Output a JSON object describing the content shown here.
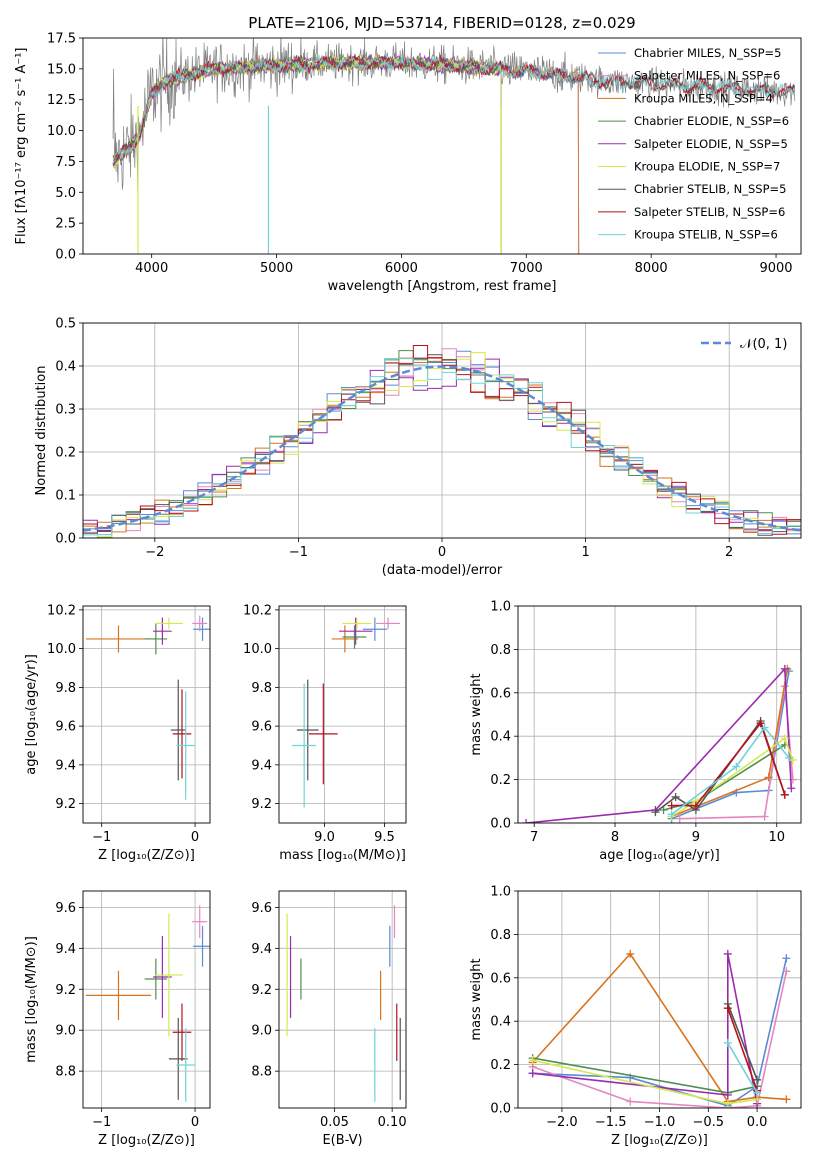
{
  "colors": {
    "chabrier_miles": "#5b8bd6",
    "salpeter_miles": "#e487bf",
    "kroupa_miles": "#d9731c",
    "chabrier_elodie": "#4f8f4f",
    "salpeter_elodie": "#9a2bb0",
    "kroupa_elodie": "#d6e84c",
    "chabrier_stelib": "#555555",
    "salpeter_stelib": "#b5121b",
    "kroupa_stelib": "#6fd3d8",
    "data": "#808080",
    "gauss": "#5b8bd6",
    "grid": "#b0b0b0"
  },
  "chart_data": [
    {
      "id": "spectrum",
      "type": "line",
      "title": "PLATE=2106, MJD=53714, FIBERID=0128, z=0.029",
      "xlabel": "wavelength [Angstrom, rest frame]",
      "ylabel": "Flux [fλ10⁻¹⁷ erg cm⁻² s⁻¹ A⁻¹]",
      "xlim": [
        3450,
        9200
      ],
      "ylim": [
        0,
        17.5
      ],
      "xticks": [
        "4000",
        "5000",
        "6000",
        "7000",
        "8000",
        "9000"
      ],
      "yticks": [
        "0.0",
        "2.5",
        "5.0",
        "7.5",
        "10.0",
        "12.5",
        "15.0",
        "17.5"
      ],
      "grid": false,
      "legend_position": "top-right",
      "legend": [
        "Chabrier MILES, N_SSP=5",
        "Salpeter MILES, N_SSP=6",
        "Kroupa MILES, N_SSP=4",
        "Chabrier ELODIE, N_SSP=6",
        "Salpeter ELODIE, N_SSP=5",
        "Kroupa ELODIE, N_SSP=7",
        "Chabrier STELIB, N_SSP=5",
        "Salpeter STELIB, N_SSP=6",
        "Kroupa STELIB, N_SSP=6"
      ],
      "continuum": {
        "x": [
          3700,
          3800,
          3900,
          4000,
          4100,
          4300,
          4500,
          5000,
          5500,
          6000,
          6500,
          7000,
          7400,
          7600,
          8000,
          8500,
          9000
        ],
        "y": [
          7.5,
          8.5,
          9.5,
          13.0,
          14.0,
          14.5,
          15.0,
          15.3,
          15.5,
          15.5,
          15.2,
          14.8,
          14.4,
          14.0,
          13.8,
          13.5,
          13.2
        ]
      }
    },
    {
      "id": "residuals",
      "type": "histogram",
      "xlabel": "(data-model)/error",
      "ylabel": "Normed distribution",
      "xlim": [
        -2.5,
        2.5
      ],
      "ylim": [
        0,
        0.5
      ],
      "xticks": [
        "−2",
        "−1",
        "0",
        "1",
        "2"
      ],
      "yticks": [
        "0.0",
        "0.1",
        "0.2",
        "0.3",
        "0.4",
        "0.5"
      ],
      "grid": true,
      "legend_position": "top-right",
      "legend": [
        "𝒩(0, 1)"
      ],
      "bin_width": 0.1
    },
    {
      "id": "age_vs_Z",
      "type": "errorbar",
      "xlabel": "Z [log₁₀(Z/Z⊙)]",
      "ylabel": "age  [log₁₀(age/yr)]",
      "xlim": [
        -1.2,
        0.16
      ],
      "ylim": [
        9.1,
        10.22
      ],
      "xticks": [
        "−1",
        "0"
      ],
      "yticks": [
        "9.2",
        "9.4",
        "9.6",
        "9.8",
        "10.0",
        "10.2"
      ],
      "grid": true,
      "points": [
        {
          "model": "chabrier_miles",
          "x": 0.08,
          "y": 10.1,
          "xerr": 0.1,
          "yerr": 0.06
        },
        {
          "model": "salpeter_miles",
          "x": 0.05,
          "y": 10.13,
          "xerr": 0.08,
          "yerr": 0.04
        },
        {
          "model": "kroupa_miles",
          "x": -0.82,
          "y": 10.05,
          "xerr": 0.35,
          "yerr": 0.07
        },
        {
          "model": "chabrier_elodie",
          "x": -0.42,
          "y": 10.05,
          "xerr": 0.12,
          "yerr": 0.08
        },
        {
          "model": "salpeter_elodie",
          "x": -0.35,
          "y": 10.09,
          "xerr": 0.1,
          "yerr": 0.07
        },
        {
          "model": "kroupa_elodie",
          "x": -0.28,
          "y": 10.13,
          "xerr": 0.15,
          "yerr": 0.03
        },
        {
          "model": "chabrier_stelib",
          "x": -0.18,
          "y": 9.58,
          "xerr": 0.08,
          "yerr": 0.26
        },
        {
          "model": "salpeter_stelib",
          "x": -0.14,
          "y": 9.56,
          "xerr": 0.1,
          "yerr": 0.23
        },
        {
          "model": "kroupa_stelib",
          "x": -0.1,
          "y": 9.5,
          "xerr": 0.1,
          "yerr": 0.28
        }
      ]
    },
    {
      "id": "age_vs_mass",
      "type": "errorbar",
      "xlabel": "mass [log₁₀(M/M⊙)]",
      "ylabel": "",
      "xlim": [
        8.62,
        9.68
      ],
      "ylim": [
        9.1,
        10.22
      ],
      "xticks": [
        "9.0",
        "9.5"
      ],
      "yticks": [
        "9.2",
        "9.4",
        "9.6",
        "9.8",
        "10.0",
        "10.2"
      ],
      "grid": true,
      "points": [
        {
          "model": "chabrier_miles",
          "x": 9.42,
          "y": 10.1,
          "xerr": 0.1,
          "yerr": 0.06
        },
        {
          "model": "salpeter_miles",
          "x": 9.53,
          "y": 10.13,
          "xerr": 0.1,
          "yerr": 0.03
        },
        {
          "model": "kroupa_miles",
          "x": 9.17,
          "y": 10.05,
          "xerr": 0.11,
          "yerr": 0.07
        },
        {
          "model": "chabrier_elodie",
          "x": 9.25,
          "y": 10.06,
          "xerr": 0.1,
          "yerr": 0.06
        },
        {
          "model": "salpeter_elodie",
          "x": 9.26,
          "y": 10.09,
          "xerr": 0.14,
          "yerr": 0.07
        },
        {
          "model": "kroupa_elodie",
          "x": 9.27,
          "y": 10.13,
          "xerr": 0.12,
          "yerr": 0.03
        },
        {
          "model": "chabrier_stelib",
          "x": 8.86,
          "y": 9.58,
          "xerr": 0.09,
          "yerr": 0.26
        },
        {
          "model": "salpeter_stelib",
          "x": 8.99,
          "y": 9.56,
          "xerr": 0.12,
          "yerr": 0.26
        },
        {
          "model": "kroupa_stelib",
          "x": 8.83,
          "y": 9.5,
          "xerr": 0.1,
          "yerr": 0.32
        }
      ]
    },
    {
      "id": "weight_vs_age",
      "type": "line",
      "xlabel": "age  [log₁₀(age/yr)]",
      "ylabel": "mass weight",
      "xlim": [
        6.8,
        10.3
      ],
      "ylim": [
        0,
        1
      ],
      "xticks": [
        "7",
        "8",
        "9",
        "10"
      ],
      "yticks": [
        "0.0",
        "0.2",
        "0.4",
        "0.6",
        "0.8",
        "1.0"
      ],
      "grid": true,
      "series": [
        {
          "model": "chabrier_miles",
          "x": [
            8.7,
            9.5,
            9.9,
            10.15
          ],
          "y": [
            0.02,
            0.14,
            0.15,
            0.7
          ]
        },
        {
          "model": "salpeter_miles",
          "x": [
            8.8,
            9.85,
            10.1,
            10.2
          ],
          "y": [
            0.02,
            0.03,
            0.63,
            0.2
          ]
        },
        {
          "model": "kroupa_miles",
          "x": [
            8.7,
            9.9,
            10.13
          ],
          "y": [
            0.03,
            0.21,
            0.71
          ]
        },
        {
          "model": "chabrier_elodie",
          "x": [
            8.6,
            9.0,
            10.1
          ],
          "y": [
            0.06,
            0.1,
            0.36
          ]
        },
        {
          "model": "salpeter_elodie",
          "x": [
            6.9,
            8.5,
            10.1,
            10.18
          ],
          "y": [
            0.0,
            0.06,
            0.71,
            0.16
          ]
        },
        {
          "model": "kroupa_elodie",
          "x": [
            8.7,
            9.0,
            10.1,
            10.2
          ],
          "y": [
            0.03,
            0.1,
            0.39,
            0.29
          ]
        },
        {
          "model": "chabrier_stelib",
          "x": [
            8.5,
            8.75,
            9.0,
            9.8,
            10.1
          ],
          "y": [
            0.05,
            0.12,
            0.06,
            0.47,
            0.13
          ]
        },
        {
          "model": "salpeter_stelib",
          "x": [
            8.7,
            9.0,
            9.8,
            10.1
          ],
          "y": [
            0.08,
            0.08,
            0.46,
            0.13
          ]
        },
        {
          "model": "kroupa_stelib",
          "x": [
            8.7,
            9.5,
            9.85,
            10.15
          ],
          "y": [
            0.04,
            0.26,
            0.44,
            0.3
          ]
        }
      ]
    },
    {
      "id": "mass_vs_Z",
      "type": "errorbar",
      "xlabel": "Z [log₁₀(Z/Z⊙)]",
      "ylabel": "mass [log₁₀(M/M⊙)]",
      "xlim": [
        -1.2,
        0.16
      ],
      "ylim": [
        8.62,
        9.68
      ],
      "xticks": [
        "−1",
        "0"
      ],
      "yticks": [
        "8.8",
        "9.0",
        "9.2",
        "9.4",
        "9.6"
      ],
      "grid": true,
      "points": [
        {
          "model": "chabrier_miles",
          "x": 0.08,
          "y": 9.41,
          "xerr": 0.1,
          "yerr": 0.1
        },
        {
          "model": "salpeter_miles",
          "x": 0.05,
          "y": 9.53,
          "xerr": 0.08,
          "yerr": 0.08
        },
        {
          "model": "kroupa_miles",
          "x": -0.82,
          "y": 9.17,
          "xerr": 0.35,
          "yerr": 0.12
        },
        {
          "model": "chabrier_elodie",
          "x": -0.42,
          "y": 9.25,
          "xerr": 0.12,
          "yerr": 0.1
        },
        {
          "model": "salpeter_elodie",
          "x": -0.35,
          "y": 9.26,
          "xerr": 0.1,
          "yerr": 0.2
        },
        {
          "model": "kroupa_elodie",
          "x": -0.28,
          "y": 9.27,
          "xerr": 0.15,
          "yerr": 0.3
        },
        {
          "model": "chabrier_stelib",
          "x": -0.18,
          "y": 8.86,
          "xerr": 0.1,
          "yerr": 0.2
        },
        {
          "model": "salpeter_stelib",
          "x": -0.14,
          "y": 8.99,
          "xerr": 0.1,
          "yerr": 0.14
        },
        {
          "model": "kroupa_stelib",
          "x": -0.1,
          "y": 8.83,
          "xerr": 0.1,
          "yerr": 0.18
        }
      ]
    },
    {
      "id": "mass_vs_ebv",
      "type": "errorbar",
      "xlabel": "E(B-V)",
      "ylabel": "",
      "xlim": [
        0.002,
        0.112
      ],
      "ylim": [
        8.62,
        9.68
      ],
      "xticks": [
        "0.05",
        "0.10"
      ],
      "yticks": [
        "8.8",
        "9.0",
        "9.2",
        "9.4",
        "9.6"
      ],
      "grid": true,
      "points": [
        {
          "model": "chabrier_miles",
          "x": 0.098,
          "y": 9.41,
          "xerr": 0.0,
          "yerr": 0.1
        },
        {
          "model": "salpeter_miles",
          "x": 0.102,
          "y": 9.53,
          "xerr": 0.0,
          "yerr": 0.08
        },
        {
          "model": "kroupa_miles",
          "x": 0.09,
          "y": 9.17,
          "xerr": 0.0,
          "yerr": 0.12
        },
        {
          "model": "chabrier_elodie",
          "x": 0.021,
          "y": 9.25,
          "xerr": 0.0,
          "yerr": 0.1
        },
        {
          "model": "salpeter_elodie",
          "x": 0.012,
          "y": 9.26,
          "xerr": 0.0,
          "yerr": 0.2
        },
        {
          "model": "kroupa_elodie",
          "x": 0.009,
          "y": 9.27,
          "xerr": 0.0,
          "yerr": 0.3
        },
        {
          "model": "chabrier_stelib",
          "x": 0.107,
          "y": 8.86,
          "xerr": 0.0,
          "yerr": 0.2
        },
        {
          "model": "salpeter_stelib",
          "x": 0.104,
          "y": 8.99,
          "xerr": 0.0,
          "yerr": 0.14
        },
        {
          "model": "kroupa_stelib",
          "x": 0.085,
          "y": 8.83,
          "xerr": 0.0,
          "yerr": 0.18
        }
      ]
    },
    {
      "id": "weight_vs_Z",
      "type": "line",
      "xlabel": "Z [log₁₀(Z/Z⊙)]",
      "ylabel": "mass weight",
      "xlim": [
        -2.45,
        0.45
      ],
      "ylim": [
        0,
        1
      ],
      "xticks": [
        "−2.0",
        "−1.5",
        "−1.0",
        "−0.5",
        "0.0"
      ],
      "yticks": [
        "0.0",
        "0.2",
        "0.4",
        "0.6",
        "0.8",
        "1.0"
      ],
      "grid": true,
      "series": [
        {
          "model": "chabrier_miles",
          "x": [
            -2.3,
            -1.3,
            -0.3,
            0.0,
            0.3
          ],
          "y": [
            0.16,
            0.14,
            0.01,
            0.1,
            0.69
          ]
        },
        {
          "model": "salpeter_miles",
          "x": [
            -2.3,
            -1.3,
            -0.3,
            0.0,
            0.3
          ],
          "y": [
            0.19,
            0.03,
            0.0,
            0.01,
            0.63
          ]
        },
        {
          "model": "kroupa_miles",
          "x": [
            -2.3,
            -1.3,
            -0.3,
            0.0,
            0.3
          ],
          "y": [
            0.21,
            0.71,
            0.03,
            0.05,
            0.04
          ]
        },
        {
          "model": "chabrier_elodie",
          "x": [
            -2.3,
            -0.3,
            0.0
          ],
          "y": [
            0.23,
            0.07,
            0.1
          ]
        },
        {
          "model": "salpeter_elodie",
          "x": [
            -2.3,
            -0.3,
            -0.3,
            0.0
          ],
          "y": [
            0.16,
            0.06,
            0.71,
            0.02
          ]
        },
        {
          "model": "kroupa_elodie",
          "x": [
            -2.3,
            -0.3,
            0.0
          ],
          "y": [
            0.22,
            0.02,
            0.04
          ]
        },
        {
          "model": "chabrier_stelib",
          "x": [
            -0.3,
            0.0
          ],
          "y": [
            0.48,
            0.13
          ]
        },
        {
          "model": "salpeter_stelib",
          "x": [
            -0.3,
            0.0
          ],
          "y": [
            0.46,
            0.08
          ]
        },
        {
          "model": "kroupa_stelib",
          "x": [
            -0.3,
            0.0
          ],
          "y": [
            0.3,
            0.07
          ]
        }
      ]
    }
  ]
}
